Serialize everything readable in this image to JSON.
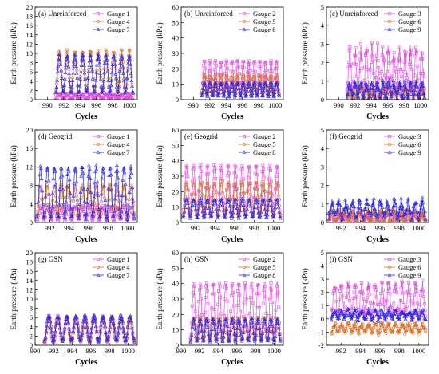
{
  "figure": {
    "markers": [
      "square",
      "circle",
      "triangle"
    ],
    "colors": [
      "#e24adf",
      "#d9722a",
      "#2a2ae8"
    ]
  },
  "chart_data": [
    {
      "id": "a",
      "label": "(a) Unreinforced",
      "type": "line",
      "xlabel": "Cycles",
      "ylabel": "Earth pressure (kPa)",
      "xlim": [
        988.5,
        1001
      ],
      "xticks": [
        990,
        992,
        994,
        996,
        998,
        1000
      ],
      "ylim": [
        0,
        20
      ],
      "yticks": [
        0,
        2,
        4,
        6,
        8,
        10,
        12,
        14,
        16,
        18,
        20
      ],
      "xrange": [
        991,
        1000.5
      ],
      "cycles": 10,
      "show_xlabel": true,
      "show_ylabel": true,
      "series": [
        {
          "name": "Gauge 1",
          "min": 0,
          "max": 1.2,
          "noise": 0.2
        },
        {
          "name": "Gauge 4",
          "min": 1.5,
          "max": 10.5,
          "noise": 0.4
        },
        {
          "name": "Gauge 7",
          "min": 1.5,
          "max": 9.5,
          "noise": 0.4
        }
      ]
    },
    {
      "id": "b",
      "label": "(b) Unreinforced",
      "type": "line",
      "xlabel": "Cycles",
      "ylabel": "Earth pressure (kPa)",
      "xlim": [
        988.5,
        1001
      ],
      "xticks": [
        990,
        992,
        994,
        996,
        998,
        1000
      ],
      "ylim": [
        0,
        60
      ],
      "yticks": [
        0,
        10,
        20,
        30,
        40,
        50,
        60
      ],
      "xrange": [
        991,
        1000.5
      ],
      "cycles": 14,
      "show_xlabel": true,
      "show_ylabel": true,
      "series": [
        {
          "name": "Gauge 2",
          "min": 4,
          "max": 25,
          "noise": 0.6
        },
        {
          "name": "Gauge 5",
          "min": 3,
          "max": 16,
          "noise": 0.5
        },
        {
          "name": "Gauge 8",
          "min": 2,
          "max": 11,
          "noise": 0.4
        }
      ]
    },
    {
      "id": "c",
      "label": "(c) Unreinforced",
      "type": "line",
      "xlabel": "Cycles",
      "ylabel": "Earth pressure (kPa)",
      "xlim": [
        988.5,
        1001
      ],
      "xticks": [
        990,
        992,
        994,
        996,
        998,
        1000
      ],
      "ylim": [
        0,
        5
      ],
      "yticks": [
        0,
        1,
        2,
        3,
        4,
        5
      ],
      "xrange": [
        991,
        1000.5
      ],
      "cycles": 14,
      "show_xlabel": true,
      "show_ylabel": true,
      "series": [
        {
          "name": "Gauge 3",
          "min": 0.3,
          "max": 2.7,
          "noise": 0.4
        },
        {
          "name": "Gauge 6",
          "min": 0.0,
          "max": 0.6,
          "noise": 0.15
        },
        {
          "name": "Gauge 9",
          "min": 0.1,
          "max": 0.9,
          "noise": 0.2
        }
      ]
    },
    {
      "id": "d",
      "label": "(d) Geogrid",
      "type": "line",
      "xlabel": "Cycles",
      "ylabel": "Earth pressure (kPa)",
      "xlim": [
        990.5,
        1001
      ],
      "xticks": [
        992,
        994,
        996,
        998,
        1000
      ],
      "ylim": [
        0,
        20
      ],
      "yticks": [
        0,
        4,
        8,
        12,
        16,
        20
      ],
      "xrange": [
        990.7,
        1000.7
      ],
      "cycles": 14,
      "show_xlabel": true,
      "show_ylabel": true,
      "series": [
        {
          "name": "Gauge 1",
          "min": 0.5,
          "max": 3.5,
          "noise": 0.3
        },
        {
          "name": "Gauge 4",
          "min": 1.5,
          "max": 8,
          "noise": 0.4
        },
        {
          "name": "Gauge 7",
          "min": 1,
          "max": 12,
          "noise": 0.4
        }
      ]
    },
    {
      "id": "e",
      "label": "(e) Geogrid",
      "type": "line",
      "xlabel": "Cycles",
      "ylabel": "Earth pressure (kPa)",
      "xlim": [
        990.5,
        1001
      ],
      "xticks": [
        992,
        994,
        996,
        998,
        1000
      ],
      "ylim": [
        0,
        60
      ],
      "yticks": [
        0,
        10,
        20,
        30,
        40,
        50,
        60
      ],
      "xrange": [
        990.7,
        1000.7
      ],
      "cycles": 14,
      "show_xlabel": true,
      "show_ylabel": true,
      "series": [
        {
          "name": "Gauge 2",
          "min": 5,
          "max": 37,
          "noise": 0.6
        },
        {
          "name": "Gauge 5",
          "min": 4,
          "max": 26,
          "noise": 0.5
        },
        {
          "name": "Gauge 8",
          "min": 3,
          "max": 15,
          "noise": 0.4
        }
      ]
    },
    {
      "id": "f",
      "label": "(f) Geogrid",
      "type": "line",
      "xlabel": "Cycles",
      "ylabel": "Earth pressure (kPa)",
      "xlim": [
        990.5,
        1001
      ],
      "xticks": [
        992,
        994,
        996,
        998,
        1000
      ],
      "ylim": [
        0,
        5
      ],
      "yticks": [
        0,
        1,
        2,
        3,
        4,
        5
      ],
      "xrange": [
        990.7,
        1000.7
      ],
      "cycles": 14,
      "show_xlabel": true,
      "show_ylabel": true,
      "series": [
        {
          "name": "Gauge 3",
          "min": 0.0,
          "max": 0.5,
          "noise": 0.2
        },
        {
          "name": "Gauge 6",
          "min": 0.0,
          "max": 0.6,
          "noise": 0.2
        },
        {
          "name": "Gauge 9",
          "min": 0.3,
          "max": 1.1,
          "noise": 0.25
        }
      ]
    },
    {
      "id": "g",
      "label": "(g) GSN",
      "type": "line",
      "xlabel": "Cycles",
      "ylabel": "Earth pressure (kPa)",
      "xlim": [
        990,
        1001
      ],
      "xticks": [
        990,
        992,
        994,
        996,
        998,
        1000
      ],
      "ylim": [
        0,
        20
      ],
      "yticks": [
        0,
        2,
        4,
        6,
        8,
        10,
        12,
        14,
        16,
        18,
        20
      ],
      "xrange": [
        991,
        1000.7
      ],
      "cycles": 10,
      "show_xlabel": true,
      "show_ylabel": true,
      "series": [
        {
          "name": "Gauge 1",
          "min": 0.8,
          "max": 6.2,
          "noise": 0.3
        },
        {
          "name": "Gauge 4",
          "min": 0.8,
          "max": 6.0,
          "noise": 0.3
        },
        {
          "name": "Gauge 7",
          "min": 1,
          "max": 6.3,
          "noise": 0.3
        }
      ]
    },
    {
      "id": "h",
      "label": "(h) GSN",
      "type": "line",
      "xlabel": "Cycles",
      "ylabel": "Earth pressure (kPa)",
      "xlim": [
        990,
        1001
      ],
      "xticks": [
        990,
        992,
        994,
        996,
        998,
        1000
      ],
      "ylim": [
        0,
        60
      ],
      "yticks": [
        0,
        10,
        20,
        30,
        40,
        50,
        60
      ],
      "xrange": [
        991,
        1000.7
      ],
      "cycles": 14,
      "show_xlabel": true,
      "show_ylabel": true,
      "series": [
        {
          "name": "Gauge 2",
          "min": 4,
          "max": 40,
          "noise": 0.6
        },
        {
          "name": "Gauge 5",
          "min": 3,
          "max": 18,
          "noise": 0.5
        },
        {
          "name": "Gauge 8",
          "min": 2.5,
          "max": 17,
          "noise": 0.5
        }
      ]
    },
    {
      "id": "i",
      "label": "(i) GSN",
      "type": "line",
      "xlabel": "Cycles",
      "ylabel": "Earth pressure (kPa)",
      "xlim": [
        990.5,
        1001
      ],
      "xticks": [
        992,
        994,
        996,
        998,
        1000
      ],
      "ylim": [
        -2,
        5
      ],
      "yticks": [
        -2,
        -1,
        0,
        1,
        2,
        3,
        4,
        5
      ],
      "xrange": [
        991,
        1000.7
      ],
      "cycles": 14,
      "show_xlabel": true,
      "show_ylabel": true,
      "series": [
        {
          "name": "Gauge 3",
          "min": 0.2,
          "max": 2.6,
          "noise": 0.35
        },
        {
          "name": "Gauge 6",
          "min": -1.0,
          "max": -0.4,
          "noise": 0.2
        },
        {
          "name": "Gauge 9",
          "min": 0.0,
          "max": 0.6,
          "noise": 0.2
        }
      ]
    }
  ]
}
